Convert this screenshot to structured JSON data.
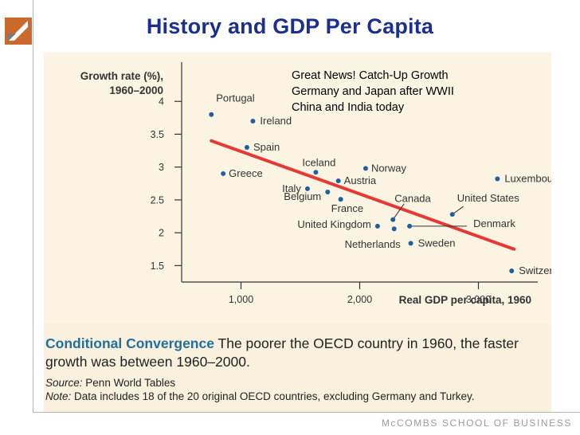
{
  "slide": {
    "title": "History and GDP Per Capita",
    "footer": "McCOMBS SCHOOL OF BUSINESS"
  },
  "callout": {
    "lines": [
      "Great News!  Catch-Up Growth",
      "Germany and Japan after WWII",
      "China and India today"
    ]
  },
  "caption": {
    "heading": "Conditional Convergence",
    "text": "The poorer the OECD country in 1960, the faster growth was between 1960–2000.",
    "source_label": "Source:",
    "source": "Penn World Tables",
    "note_label": "Note:",
    "note": "Data includes 18 of the 20 original OECD countries, excluding Germany and Turkey."
  },
  "colors": {
    "title": "#1c2f8c",
    "point": "#1f5fa0",
    "trend": "#e53935",
    "chart_bg": "#fbf4e3"
  },
  "chart_data": {
    "type": "scatter",
    "ylabel": "Growth rate (%), 1960–2000",
    "xlabel": "Real GDP per capita, 1960",
    "xlim": [
      500,
      3500
    ],
    "ylim": [
      1.25,
      4.5
    ],
    "xticks": [
      1000,
      2000,
      3000
    ],
    "xtick_labels": [
      "1,000",
      "2,000",
      "3,000"
    ],
    "yticks": [
      1.5,
      2,
      2.5,
      3,
      3.5,
      4
    ],
    "ytick_labels": [
      "1.5",
      "2",
      "2.5",
      "3",
      "3.5",
      "4"
    ],
    "points": [
      {
        "label": "Portugal",
        "x": 750,
        "y": 3.8
      },
      {
        "label": "Ireland",
        "x": 1100,
        "y": 3.7
      },
      {
        "label": "Spain",
        "x": 1050,
        "y": 3.3
      },
      {
        "label": "Greece",
        "x": 850,
        "y": 2.9
      },
      {
        "label": "Iceland",
        "x": 1630,
        "y": 2.92
      },
      {
        "label": "Norway",
        "x": 2050,
        "y": 2.98
      },
      {
        "label": "Italy",
        "x": 1560,
        "y": 2.67
      },
      {
        "label": "Austria",
        "x": 1820,
        "y": 2.79
      },
      {
        "label": "Belgium",
        "x": 1730,
        "y": 2.62
      },
      {
        "label": "France",
        "x": 1840,
        "y": 2.51
      },
      {
        "label": "Luxembourg",
        "x": 3160,
        "y": 2.82
      },
      {
        "label": "United States",
        "x": 2780,
        "y": 2.28
      },
      {
        "label": "Canada",
        "x": 2280,
        "y": 2.2
      },
      {
        "label": "United Kingdom",
        "x": 2150,
        "y": 2.1
      },
      {
        "label": "Denmark",
        "x": 2420,
        "y": 2.1
      },
      {
        "label": "Netherlands",
        "x": 2290,
        "y": 2.06
      },
      {
        "label": "Sweden",
        "x": 2430,
        "y": 1.84
      },
      {
        "label": "Switzerland",
        "x": 3280,
        "y": 1.42
      }
    ],
    "trendline": {
      "x": [
        750,
        3300
      ],
      "y": [
        3.4,
        1.75
      ]
    }
  }
}
